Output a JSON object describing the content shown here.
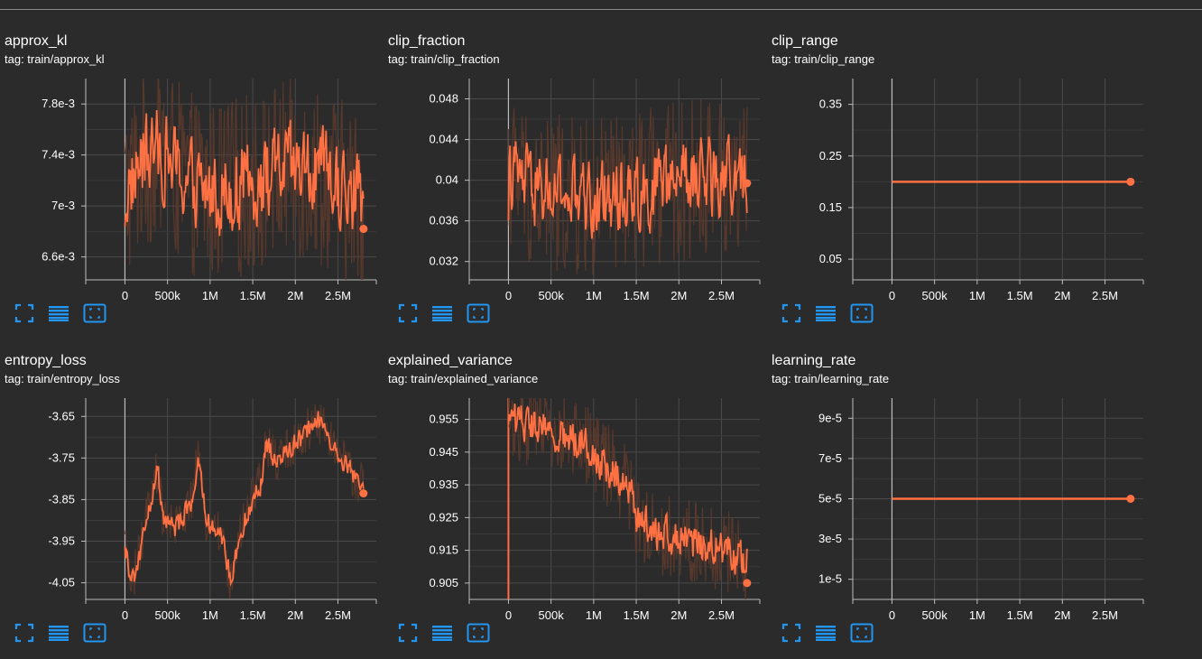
{
  "colors": {
    "line": "#ff7043",
    "raw": "#5c3a2c",
    "grid": "#4a4a4a",
    "axis": "#bdbdbd",
    "icon": "#2196f3",
    "bg": "#2b2b2b"
  },
  "toolbar_icons": [
    "fullscreen-icon",
    "list-icon",
    "fit-domain-icon"
  ],
  "charts": [
    {
      "title": "approx_kl",
      "tag": "tag: train/approx_kl"
    },
    {
      "title": "clip_fraction",
      "tag": "tag: train/clip_fraction"
    },
    {
      "title": "clip_range",
      "tag": "tag: train/clip_range"
    },
    {
      "title": "entropy_loss",
      "tag": "tag: train/entropy_loss"
    },
    {
      "title": "explained_variance",
      "tag": "tag: train/explained_variance"
    },
    {
      "title": "learning_rate",
      "tag": "tag: train/learning_rate"
    }
  ],
  "chart_data": [
    {
      "type": "line",
      "title": "approx_kl",
      "xlabel": "",
      "ylabel": "",
      "xlim": [
        -460000,
        2950000
      ],
      "ylim": [
        0.00642,
        0.008
      ],
      "xticks": [
        0,
        500000,
        1000000,
        1500000,
        2000000,
        2500000
      ],
      "xtick_labels": [
        "0",
        "500k",
        "1M",
        "1.5M",
        "2M",
        "2.5M"
      ],
      "yticks": [
        0.0066,
        0.007,
        0.0074,
        0.0078
      ],
      "ytick_labels": [
        "6.6e-3",
        "7e-3",
        "7.4e-3",
        "7.8e-3"
      ],
      "series": [
        {
          "kind": "noisy",
          "x_start": 0,
          "x_end": 2800000,
          "knots": [
            [
              0,
              0.0071
            ],
            [
              200000,
              0.00735
            ],
            [
              400000,
              0.00745
            ],
            [
              700000,
              0.0072
            ],
            [
              1000000,
              0.0071
            ],
            [
              1300000,
              0.00715
            ],
            [
              1600000,
              0.0072
            ],
            [
              1900000,
              0.0073
            ],
            [
              2300000,
              0.00725
            ],
            [
              2600000,
              0.0071
            ],
            [
              2800000,
              0.00705
            ]
          ],
          "noise": 0.00045,
          "last": [
            2800000,
            0.00682
          ]
        }
      ],
      "grid": true
    },
    {
      "type": "line",
      "title": "clip_fraction",
      "xlim": [
        -460000,
        2950000
      ],
      "ylim": [
        0.0302,
        0.05
      ],
      "xticks": [
        0,
        500000,
        1000000,
        1500000,
        2000000,
        2500000
      ],
      "xtick_labels": [
        "0",
        "500k",
        "1M",
        "1.5M",
        "2M",
        "2.5M"
      ],
      "yticks": [
        0.032,
        0.036,
        0.04,
        0.044,
        0.048
      ],
      "ytick_labels": [
        "0.032",
        "0.036",
        "0.04",
        "0.044",
        "0.048"
      ],
      "series": [
        {
          "kind": "noisy",
          "x_start": 0,
          "x_end": 2800000,
          "knots": [
            [
              0,
              0.041
            ],
            [
              300000,
              0.039
            ],
            [
              600000,
              0.0385
            ],
            [
              900000,
              0.038
            ],
            [
              1200000,
              0.0385
            ],
            [
              1500000,
              0.039
            ],
            [
              1800000,
              0.0395
            ],
            [
              2100000,
              0.04
            ],
            [
              2400000,
              0.0405
            ],
            [
              2800000,
              0.04
            ]
          ],
          "noise": 0.005,
          "last": [
            2800000,
            0.0397
          ]
        }
      ],
      "grid": true
    },
    {
      "type": "line",
      "title": "clip_range",
      "xlim": [
        -460000,
        2950000
      ],
      "ylim": [
        0.01,
        0.4
      ],
      "xticks": [
        0,
        500000,
        1000000,
        1500000,
        2000000,
        2500000
      ],
      "xtick_labels": [
        "0",
        "500k",
        "1M",
        "1.5M",
        "2M",
        "2.5M"
      ],
      "yticks": [
        0.05,
        0.15,
        0.25,
        0.35
      ],
      "ytick_labels": [
        "0.05",
        "0.15",
        "0.25",
        "0.35"
      ],
      "series": [
        {
          "kind": "flat",
          "x": [
            0,
            2800000
          ],
          "y": [
            0.2,
            0.2
          ],
          "last": [
            2800000,
            0.2
          ]
        }
      ],
      "grid": true
    },
    {
      "type": "line",
      "title": "entropy_loss",
      "xlim": [
        -460000,
        2950000
      ],
      "ylim": [
        -4.09,
        -3.606
      ],
      "xticks": [
        0,
        500000,
        1000000,
        1500000,
        2000000,
        2500000
      ],
      "xtick_labels": [
        "0",
        "500k",
        "1M",
        "1.5M",
        "2M",
        "2.5M"
      ],
      "yticks": [
        -4.05,
        -3.95,
        -3.85,
        -3.75,
        -3.65
      ],
      "ytick_labels": [
        "-4.05",
        "-3.95",
        "-3.85",
        "-3.75",
        "-3.65"
      ],
      "series": [
        {
          "kind": "noisy",
          "x_start": 0,
          "x_end": 2800000,
          "knots": [
            [
              0,
              -3.97
            ],
            [
              80000,
              -4.05
            ],
            [
              150000,
              -4.0
            ],
            [
              250000,
              -3.9
            ],
            [
              380000,
              -3.78
            ],
            [
              450000,
              -3.9
            ],
            [
              600000,
              -3.92
            ],
            [
              800000,
              -3.84
            ],
            [
              850000,
              -3.75
            ],
            [
              950000,
              -3.9
            ],
            [
              1100000,
              -3.92
            ],
            [
              1250000,
              -4.05
            ],
            [
              1300000,
              -3.98
            ],
            [
              1450000,
              -3.87
            ],
            [
              1600000,
              -3.8
            ],
            [
              1650000,
              -3.72
            ],
            [
              1800000,
              -3.76
            ],
            [
              1950000,
              -3.72
            ],
            [
              2100000,
              -3.7
            ],
            [
              2250000,
              -3.65
            ],
            [
              2400000,
              -3.7
            ],
            [
              2600000,
              -3.77
            ],
            [
              2800000,
              -3.82
            ]
          ],
          "noise": 0.035,
          "last": [
            2800000,
            -3.835
          ]
        }
      ],
      "grid": true
    },
    {
      "type": "line",
      "title": "explained_variance",
      "xlim": [
        -460000,
        2950000
      ],
      "ylim": [
        0.9,
        0.9615
      ],
      "xticks": [
        0,
        500000,
        1000000,
        1500000,
        2000000,
        2500000
      ],
      "xtick_labels": [
        "0",
        "500k",
        "1M",
        "1.5M",
        "2M",
        "2.5M"
      ],
      "yticks": [
        0.905,
        0.915,
        0.925,
        0.935,
        0.945,
        0.955
      ],
      "ytick_labels": [
        "0.905",
        "0.915",
        "0.925",
        "0.935",
        "0.945",
        "0.955"
      ],
      "series": [
        {
          "kind": "noisy",
          "x_start": 0,
          "x_end": 2800000,
          "knots": [
            [
              0,
              0.955
            ],
            [
              300000,
              0.953
            ],
            [
              600000,
              0.95
            ],
            [
              900000,
              0.948
            ],
            [
              1200000,
              0.94
            ],
            [
              1400000,
              0.935
            ],
            [
              1500000,
              0.925
            ],
            [
              1800000,
              0.92
            ],
            [
              2100000,
              0.918
            ],
            [
              2400000,
              0.916
            ],
            [
              2800000,
              0.912
            ]
          ],
          "noise": 0.008,
          "last": [
            2800000,
            0.905
          ],
          "spike": [
            0,
            0.9
          ]
        }
      ],
      "grid": true
    },
    {
      "type": "line",
      "title": "learning_rate",
      "xlim": [
        -460000,
        2950000
      ],
      "ylim": [
        0,
        0.0001
      ],
      "xticks": [
        0,
        500000,
        1000000,
        1500000,
        2000000,
        2500000
      ],
      "xtick_labels": [
        "0",
        "500k",
        "1M",
        "1.5M",
        "2M",
        "2.5M"
      ],
      "yticks": [
        1e-05,
        3e-05,
        5e-05,
        7e-05,
        9e-05
      ],
      "ytick_labels": [
        "1e-5",
        "3e-5",
        "5e-5",
        "7e-5",
        "9e-5"
      ],
      "series": [
        {
          "kind": "flat",
          "x": [
            0,
            2800000
          ],
          "y": [
            5e-05,
            5e-05
          ],
          "last": [
            2800000,
            5e-05
          ]
        }
      ],
      "grid": true
    }
  ]
}
